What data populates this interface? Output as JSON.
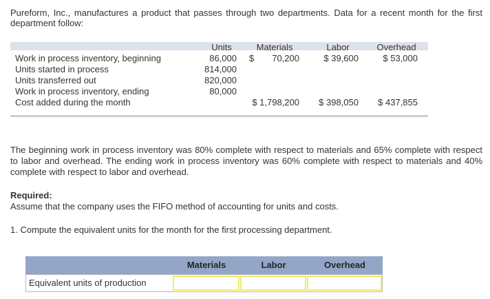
{
  "intro": "Pureform, Inc., manufactures a product that passes through two departments. Data for a recent month for the first department follow:",
  "data_table": {
    "headers": {
      "units": "Units",
      "materials": "Materials",
      "labor": "Labor",
      "overhead": "Overhead"
    },
    "rows": [
      {
        "label": "Work in process inventory, beginning",
        "units": "86,000",
        "materials_sign": "$",
        "materials": "70,200",
        "labor": "$ 39,600",
        "overhead": "$ 53,000"
      },
      {
        "label": "Units started in process",
        "units": "814,000"
      },
      {
        "label": "Units transferred out",
        "units": "820,000"
      },
      {
        "label": "Work in process inventory, ending",
        "units": "80,000"
      },
      {
        "label": "Cost added during the month",
        "materials": "$ 1,798,200",
        "labor": "$ 398,050",
        "overhead": "$ 437,855"
      }
    ]
  },
  "paragraph": "The beginning work in process inventory was 80% complete with respect to materials and 65% complete with respect to labor and overhead. The ending work in process inventory was 60% complete with respect to materials and 40% complete with respect to labor and overhead.",
  "required": {
    "title": "Required:",
    "text": "Assume that the company uses the FIFO method of accounting for units and costs."
  },
  "question": "1.  Compute the equivalent units for the month for the first processing department.",
  "answer_table": {
    "headers": {
      "materials": "Materials",
      "labor": "Labor",
      "overhead": "Overhead"
    },
    "row_label": "Equivalent units of production",
    "values": {
      "materials": "",
      "labor": "",
      "overhead": ""
    }
  }
}
